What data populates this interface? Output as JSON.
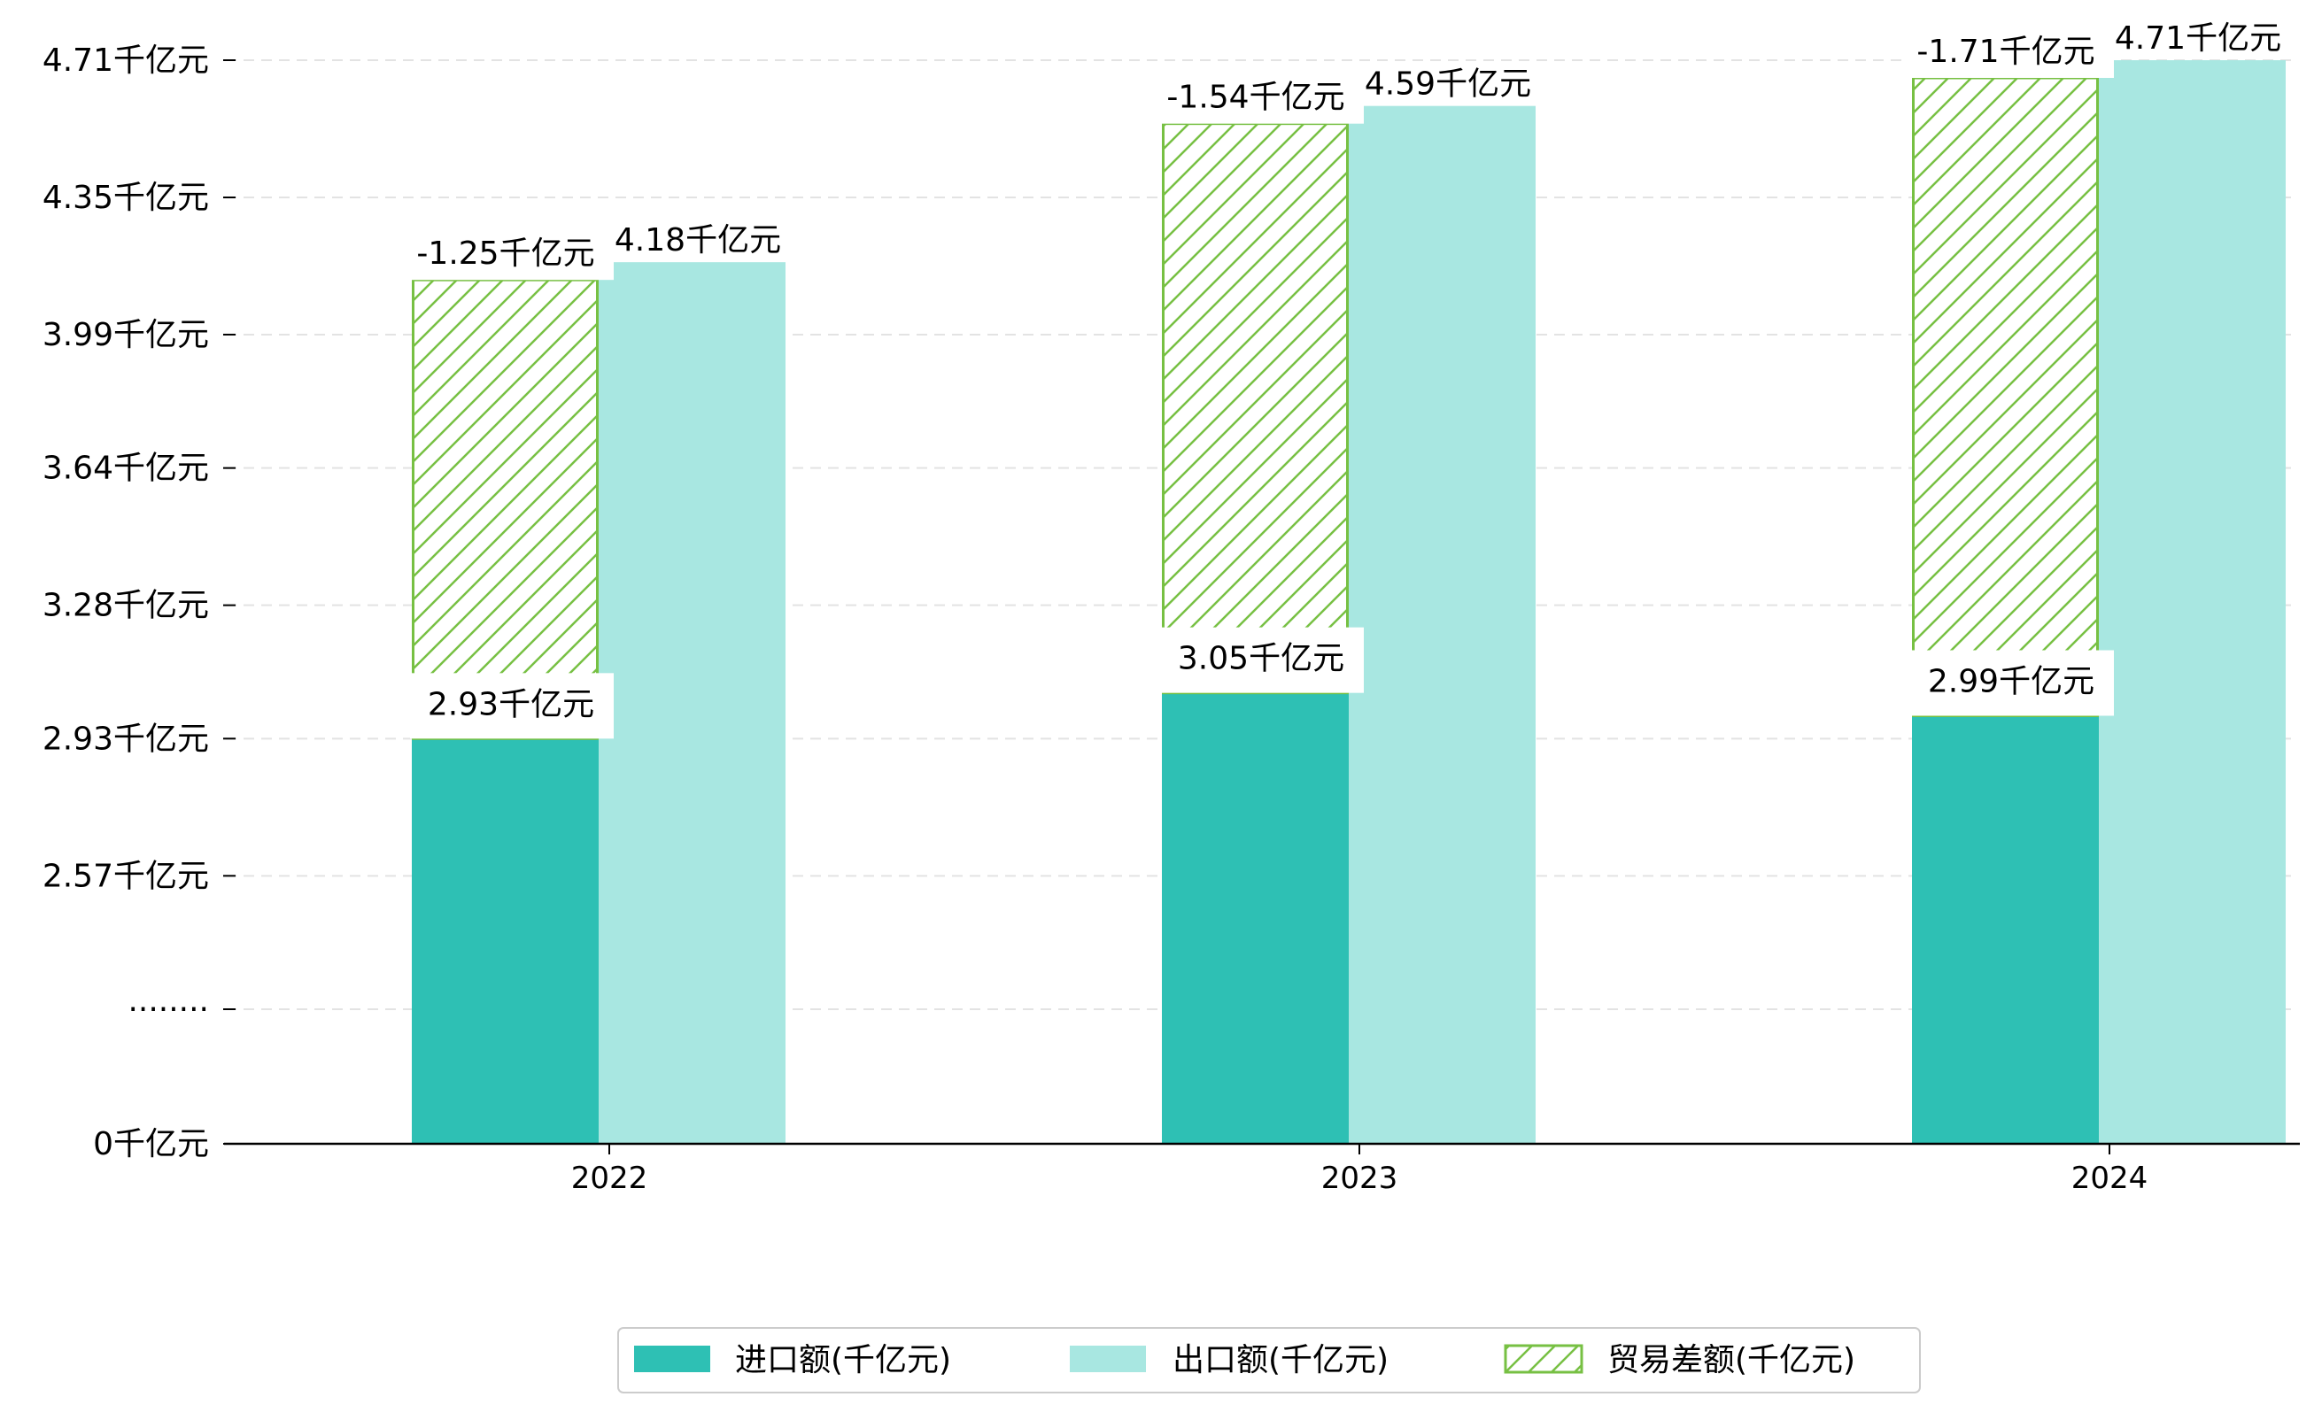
{
  "chart_data": {
    "type": "bar",
    "categories": [
      "2022",
      "2023",
      "2024"
    ],
    "series": [
      {
        "name": "进口额(千亿元)",
        "values": [
          2.93,
          3.05,
          2.99
        ],
        "color": "#2ec0b4",
        "labels": [
          "2.93千亿元",
          "3.05千亿元",
          "2.99千亿元"
        ]
      },
      {
        "name": "出口额(千亿元)",
        "values": [
          4.18,
          4.59,
          4.71
        ],
        "color": "#a8e7e1",
        "labels": [
          "4.18千亿元",
          "4.59千亿元",
          "4.71千亿元"
        ]
      },
      {
        "name": "贸易差额(千亿元)",
        "values": [
          -1.25,
          -1.54,
          -1.71
        ],
        "color": "#77c043",
        "labels": [
          "-1.25千亿元",
          "-1.54千亿元",
          "-1.71千亿元"
        ]
      }
    ],
    "y_ticks": [
      {
        "value": 0,
        "label": "0千亿元"
      },
      {
        "value": 2.22,
        "label": "········"
      },
      {
        "value": 2.57,
        "label": "2.57千亿元"
      },
      {
        "value": 2.93,
        "label": "2.93千亿元"
      },
      {
        "value": 3.28,
        "label": "3.28千亿元"
      },
      {
        "value": 3.64,
        "label": "3.64千亿元"
      },
      {
        "value": 3.99,
        "label": "3.99千亿元"
      },
      {
        "value": 4.35,
        "label": "4.35千亿元"
      },
      {
        "value": 4.71,
        "label": "4.71千亿元"
      }
    ],
    "axis_break": true,
    "grid": true,
    "legend_position": "bottom-center"
  }
}
